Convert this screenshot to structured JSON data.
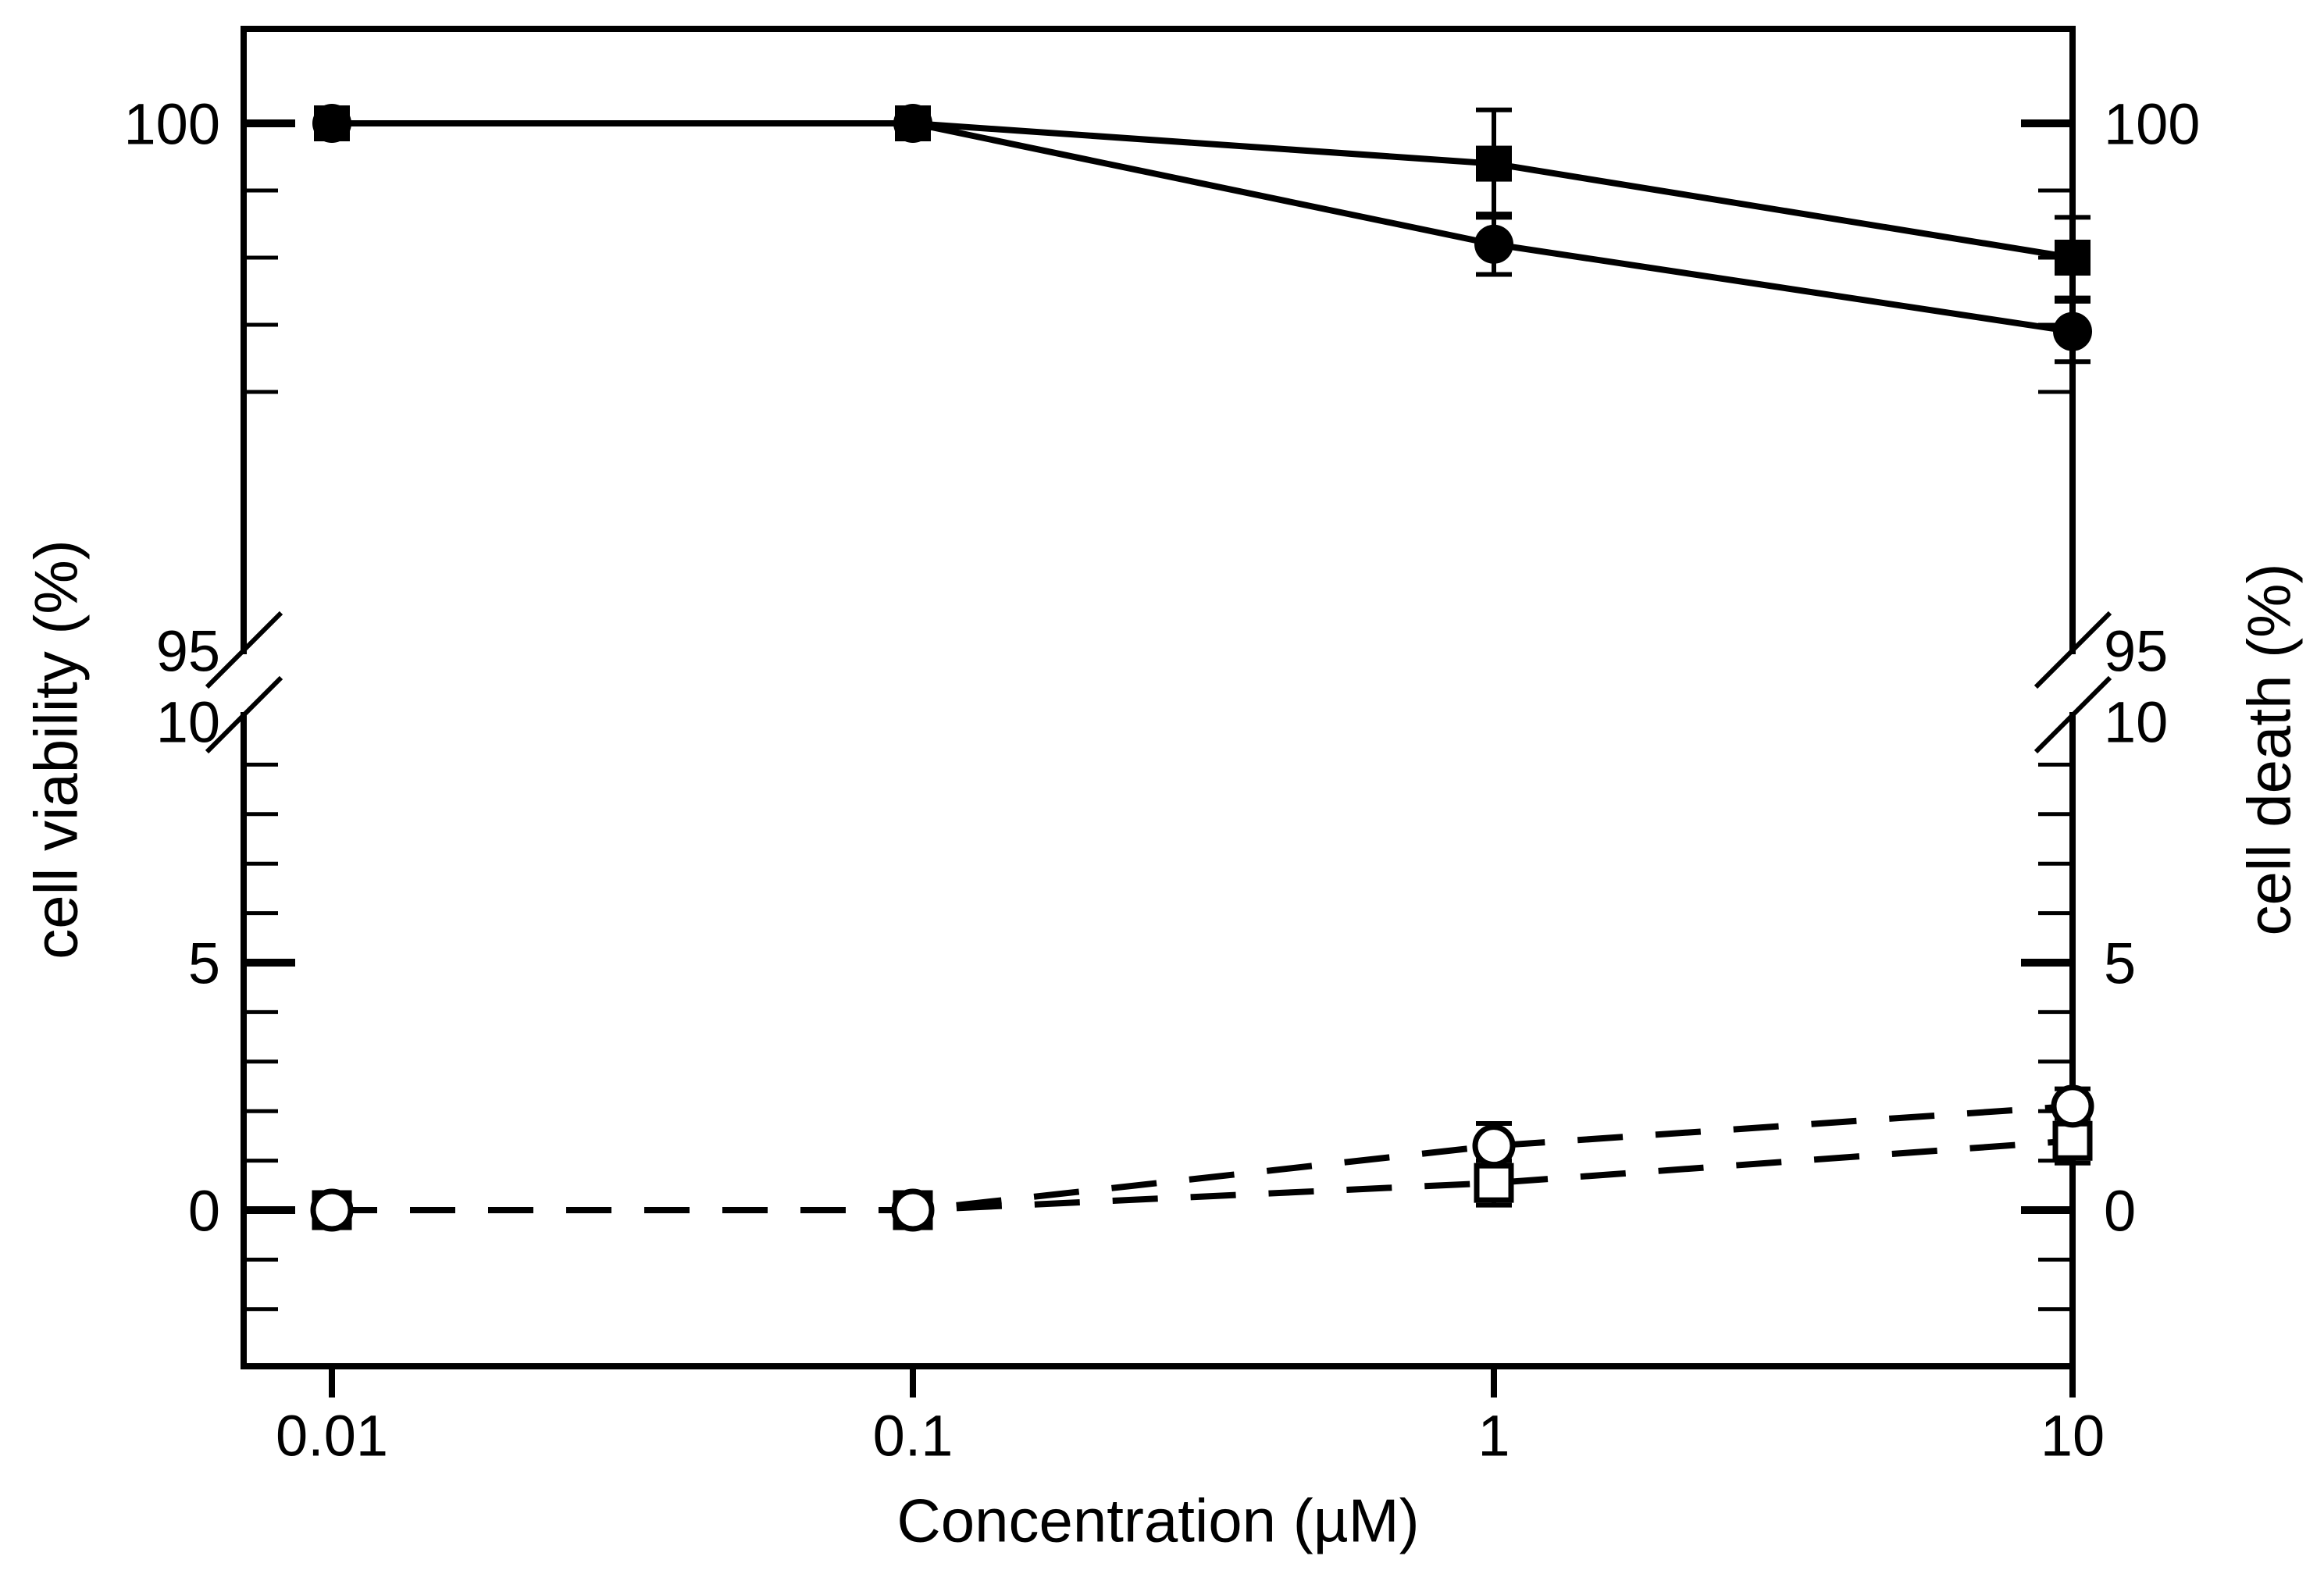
{
  "figure": {
    "background": "#ffffff",
    "ink_color": "#000000"
  },
  "chart_data": {
    "type": "line",
    "x_scale": "log",
    "x": [
      0.01,
      0.1,
      1,
      10
    ],
    "x_tick_labels": [
      "0.01",
      "0.1",
      "1",
      "10"
    ],
    "xlabel": "Concentration (µM)",
    "left_ylabel": "cell viability (%)",
    "right_ylabel": "cell death (%)",
    "y_axis_broken": true,
    "upper_segment": {
      "unit": "percent",
      "major_ticks": [
        100
      ],
      "minor_ticks": [
        99,
        98,
        97,
        96
      ],
      "break_label": 95
    },
    "lower_segment": {
      "break_label": 10,
      "major_ticks": [
        5,
        0
      ],
      "minor_ticks": [
        9,
        8,
        7,
        6,
        4,
        3,
        2,
        1,
        -1,
        -2
      ]
    },
    "grid": "off",
    "legend_position": "none",
    "series": [
      {
        "name": "cell viability (filled square)",
        "marker": "filled-square",
        "line": "solid",
        "segment": "upper",
        "values": [
          100,
          100,
          99.4,
          98.0
        ],
        "errors": [
          0,
          0,
          0.8,
          0.6
        ]
      },
      {
        "name": "cell viability (filled circle)",
        "marker": "filled-circle",
        "line": "solid",
        "segment": "upper",
        "values": [
          100,
          100,
          98.2,
          96.9
        ],
        "errors": [
          0,
          0,
          0.45,
          0.45
        ]
      },
      {
        "name": "cell death (open square)",
        "marker": "open-square",
        "line": "dashed",
        "segment": "lower",
        "values": [
          0,
          0,
          0.55,
          1.4
        ],
        "errors": [
          0,
          0,
          0.45,
          0.45
        ]
      },
      {
        "name": "cell death (open circle)",
        "marker": "open-circle",
        "line": "dashed",
        "segment": "lower",
        "values": [
          0,
          0,
          1.3,
          2.1
        ],
        "errors": [
          0,
          0,
          0.45,
          0.35
        ]
      }
    ]
  }
}
